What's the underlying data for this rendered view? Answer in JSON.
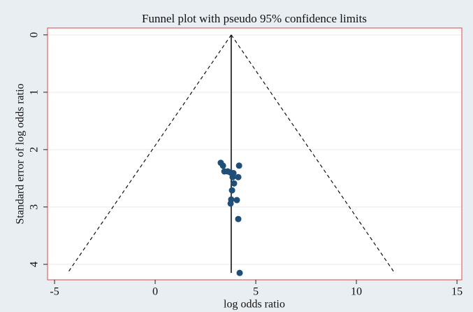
{
  "chart_data": {
    "type": "scatter",
    "title": "Funnel plot with pseudo 95% confidence limits",
    "x_label": "log odds ratio",
    "y_label": "Standard error of log odds ratio",
    "xlim": [
      -5.35,
      15.24
    ],
    "xticks": [
      -5,
      0,
      5,
      10,
      15
    ],
    "ylim": [
      -0.12,
      4.27
    ],
    "yticks": [
      0,
      1,
      2,
      3,
      4
    ],
    "y_inverted": true,
    "grid": true,
    "series": [
      {
        "color": "#1f4e79",
        "x": [
          3.26,
          3.37,
          3.44,
          3.61,
          3.75,
          3.89,
          4.17,
          3.85,
          4.13,
          3.92,
          3.82,
          3.78,
          4.06,
          3.75,
          4.13,
          4.2
        ],
        "values": [
          2.23,
          2.28,
          2.38,
          2.38,
          2.4,
          2.41,
          2.28,
          2.48,
          2.48,
          2.59,
          2.71,
          2.87,
          2.88,
          2.94,
          3.21,
          4.15
        ]
      }
    ],
    "lines": [
      {
        "style": "solid",
        "x": [
          3.78,
          3.78
        ],
        "y": [
          0,
          4.15
        ]
      },
      {
        "style": "dashed",
        "x": [
          3.78,
          -4.35
        ],
        "y": [
          0,
          4.15
        ]
      },
      {
        "style": "dashed",
        "x": [
          3.78,
          11.9
        ],
        "y": [
          0,
          4.15
        ]
      }
    ]
  }
}
